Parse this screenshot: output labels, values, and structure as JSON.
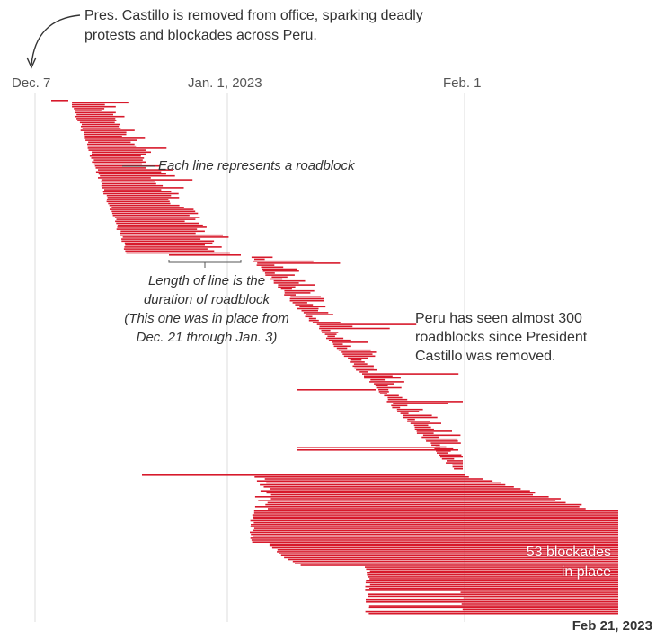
{
  "top_annotation": "Pres. Castillo is removed from office, sparking deadly protests and blockades across Peru.",
  "axis_ticks": [
    "Dec. 7",
    "Jan. 1, 2023",
    "Feb. 1"
  ],
  "annotation_line": "Each line represents a roadblock",
  "annotation_length": "Length of line is the duration of roadblock (This one was in place from Dec. 21 through Jan. 3)",
  "annotation_length_lines": [
    "Length of line is the",
    "duration of roadblock",
    "(This one was in place from",
    "Dec. 21 through Jan. 3)"
  ],
  "side_note": "Peru has seen almost 300 roadblocks since President Castillo was removed.",
  "end_label": "Feb 21, 2023",
  "overlay_label_lines": [
    "53 blockades",
    "in place"
  ],
  "colors": {
    "bar": "#d7192b",
    "grid": "#dddddd",
    "text": "#333333"
  },
  "chart_data": {
    "type": "timeline",
    "x_axis": {
      "start": "Dec. 7",
      "end": "Feb 21, 2023",
      "ticks": [
        "Dec. 7",
        "Jan. 1, 2023",
        "Feb. 1"
      ]
    },
    "total_roadblocks_approx": 300,
    "in_place_at_end": 53,
    "highlighted_example": {
      "start": "Dec. 21",
      "end": "Jan. 3"
    }
  }
}
